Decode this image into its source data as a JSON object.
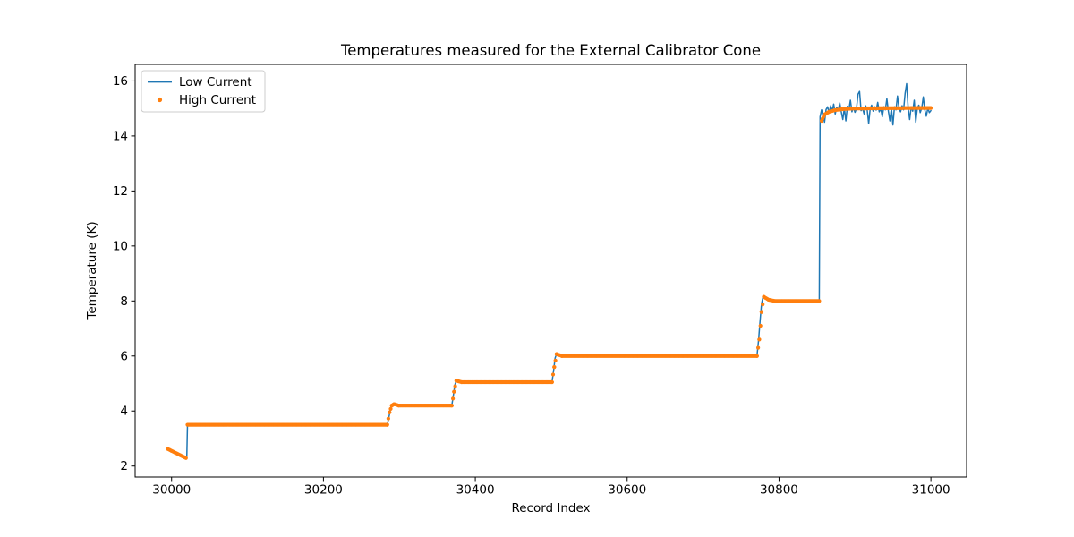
{
  "chart_data": {
    "type": "line",
    "title": "Temperatures measured for the External Calibrator Cone",
    "xlabel": "Record Index",
    "ylabel": "Temperature (K)",
    "xlim": [
      29952,
      31047
    ],
    "ylim": [
      1.6,
      16.6
    ],
    "xticks": [
      30000,
      30200,
      30400,
      30600,
      30800,
      31000
    ],
    "yticks": [
      2,
      4,
      6,
      8,
      10,
      12,
      14,
      16
    ],
    "grid": false,
    "background": "#ffffff",
    "legend": {
      "position": "upper-left",
      "entries": [
        {
          "label": "Low Current",
          "type": "line",
          "color": "#1f77b4"
        },
        {
          "label": "High Current",
          "type": "dot",
          "color": "#ff7f0e"
        }
      ]
    },
    "series": [
      {
        "name": "Low Current",
        "type": "line",
        "color": "#1f77b4",
        "line_width": 1.5,
        "points": [
          [
            29995,
            2.6
          ],
          [
            30000,
            2.54
          ],
          [
            30006,
            2.47
          ],
          [
            30012,
            2.39
          ],
          [
            30017,
            2.32
          ],
          [
            30020,
            2.28
          ],
          [
            30021,
            3.5
          ],
          [
            30284,
            3.5
          ],
          [
            30286,
            3.75
          ],
          [
            30289,
            4.15
          ],
          [
            30292,
            4.24
          ],
          [
            30296,
            4.21
          ],
          [
            30302,
            4.2
          ],
          [
            30369,
            4.2
          ],
          [
            30371,
            4.55
          ],
          [
            30373,
            4.95
          ],
          [
            30375,
            5.1
          ],
          [
            30379,
            5.06
          ],
          [
            30386,
            5.05
          ],
          [
            30501,
            5.05
          ],
          [
            30503,
            5.45
          ],
          [
            30505,
            5.92
          ],
          [
            30507,
            6.08
          ],
          [
            30512,
            6.02
          ],
          [
            30518,
            6.0
          ],
          [
            30771,
            6.0
          ],
          [
            30773,
            6.55
          ],
          [
            30775,
            7.25
          ],
          [
            30777,
            7.9
          ],
          [
            30779,
            8.15
          ],
          [
            30783,
            8.08
          ],
          [
            30789,
            8.02
          ],
          [
            30796,
            8.0
          ],
          [
            30853,
            8.0
          ],
          [
            30854,
            14.7
          ],
          [
            30856,
            14.95
          ],
          [
            30858,
            14.72
          ],
          [
            30860,
            14.5
          ],
          [
            30862,
            14.96
          ],
          [
            30864,
            15.06
          ],
          [
            30866,
            14.85
          ],
          [
            30868,
            15.1
          ],
          [
            30870,
            14.9
          ],
          [
            30872,
            15.16
          ],
          [
            30874,
            14.8
          ],
          [
            30876,
            15.04
          ],
          [
            30878,
            14.94
          ],
          [
            30880,
            15.2
          ],
          [
            30882,
            14.88
          ],
          [
            30884,
            14.6
          ],
          [
            30886,
            15.02
          ],
          [
            30888,
            14.55
          ],
          [
            30890,
            15.08
          ],
          [
            30892,
            14.96
          ],
          [
            30894,
            15.3
          ],
          [
            30896,
            14.88
          ],
          [
            30898,
            15.04
          ],
          [
            30900,
            14.86
          ],
          [
            30902,
            15.0
          ],
          [
            30904,
            15.52
          ],
          [
            30906,
            15.62
          ],
          [
            30908,
            14.92
          ],
          [
            30910,
            15.0
          ],
          [
            30912,
            14.8
          ],
          [
            30914,
            15.1
          ],
          [
            30916,
            14.96
          ],
          [
            30918,
            14.45
          ],
          [
            30920,
            15.0
          ],
          [
            30922,
            15.12
          ],
          [
            30924,
            14.9
          ],
          [
            30926,
            15.06
          ],
          [
            30928,
            14.94
          ],
          [
            30930,
            15.22
          ],
          [
            30932,
            14.88
          ],
          [
            30934,
            15.0
          ],
          [
            30936,
            14.7
          ],
          [
            30938,
            15.06
          ],
          [
            30940,
            14.95
          ],
          [
            30942,
            15.35
          ],
          [
            30944,
            14.9
          ],
          [
            30946,
            14.55
          ],
          [
            30948,
            15.0
          ],
          [
            30950,
            14.4
          ],
          [
            30952,
            15.06
          ],
          [
            30954,
            14.95
          ],
          [
            30956,
            15.45
          ],
          [
            30958,
            15.0
          ],
          [
            30960,
            14.88
          ],
          [
            30962,
            15.1
          ],
          [
            30964,
            14.95
          ],
          [
            30966,
            15.55
          ],
          [
            30968,
            15.9
          ],
          [
            30970,
            15.02
          ],
          [
            30972,
            14.6
          ],
          [
            30974,
            15.06
          ],
          [
            30976,
            14.9
          ],
          [
            30978,
            15.3
          ],
          [
            30980,
            14.5
          ],
          [
            30982,
            15.0
          ],
          [
            30984,
            15.12
          ],
          [
            30986,
            14.85
          ],
          [
            30988,
            15.02
          ],
          [
            30990,
            15.42
          ],
          [
            30992,
            14.95
          ],
          [
            30994,
            14.72
          ],
          [
            30996,
            15.02
          ],
          [
            30998,
            14.85
          ],
          [
            31000,
            14.92
          ]
        ]
      },
      {
        "name": "High Current",
        "type": "scatter",
        "color": "#ff7f0e",
        "dot_radius": 2.1,
        "dot_spacing_records": 1.5,
        "segments": [
          [
            [
              29995,
              2.62
            ],
            [
              30019,
              2.29
            ]
          ],
          [
            [
              30021,
              3.5
            ],
            [
              30284,
              3.5
            ],
            [
              30287,
              3.95
            ],
            [
              30290,
              4.2
            ],
            [
              30293,
              4.25
            ],
            [
              30299,
              4.2
            ],
            [
              30369,
              4.2
            ],
            [
              30372,
              4.7
            ],
            [
              30375,
              5.1
            ],
            [
              30382,
              5.05
            ],
            [
              30501,
              5.05
            ],
            [
              30504,
              5.6
            ],
            [
              30507,
              6.07
            ],
            [
              30514,
              6.0
            ],
            [
              30771,
              6.0
            ],
            [
              30774,
              6.6
            ],
            [
              30777,
              7.6
            ],
            [
              30780,
              8.15
            ],
            [
              30786,
              8.05
            ],
            [
              30794,
              8.0
            ],
            [
              30853,
              8.0
            ]
          ],
          [
            [
              30856,
              14.55
            ],
            [
              30860,
              14.78
            ],
            [
              30866,
              14.88
            ],
            [
              30874,
              14.94
            ],
            [
              30885,
              14.98
            ],
            [
              30900,
              15.0
            ],
            [
              30940,
              15.01
            ],
            [
              31000,
              15.02
            ]
          ]
        ]
      }
    ]
  }
}
